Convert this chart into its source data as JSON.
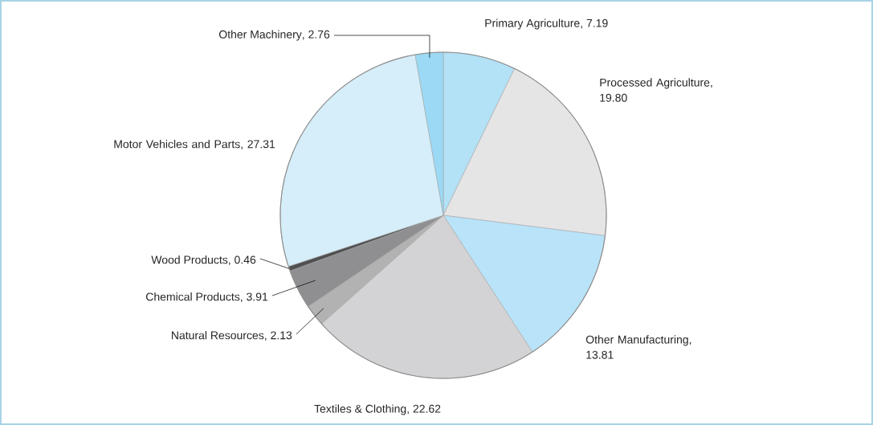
{
  "chart_data": {
    "type": "pie",
    "categories": [
      "Primary Agriculture",
      "Processed Agriculture",
      "Other Manufacturing",
      "Textiles & Clothing",
      "Natural Resources",
      "Chemical Products",
      "Wood Products",
      "Motor Vehicles and Parts",
      "Other Machinery"
    ],
    "values": [
      7.19,
      19.8,
      13.81,
      22.62,
      2.13,
      3.91,
      0.46,
      27.31,
      2.76
    ],
    "value_labels": [
      ", 7.19",
      ", 19.80",
      ", 13.81",
      ", 22.62",
      ", 2.13",
      ", 3.91",
      ", 0.46",
      ", 27.31",
      ", 2.76"
    ],
    "colors": [
      "#b3e1f6",
      "#e5e5e6",
      "#b9e3f8",
      "#d3d3d5",
      "#b2b2b3",
      "#8f8f91",
      "#505052",
      "#d5eef9",
      "#9bd9f4"
    ]
  }
}
